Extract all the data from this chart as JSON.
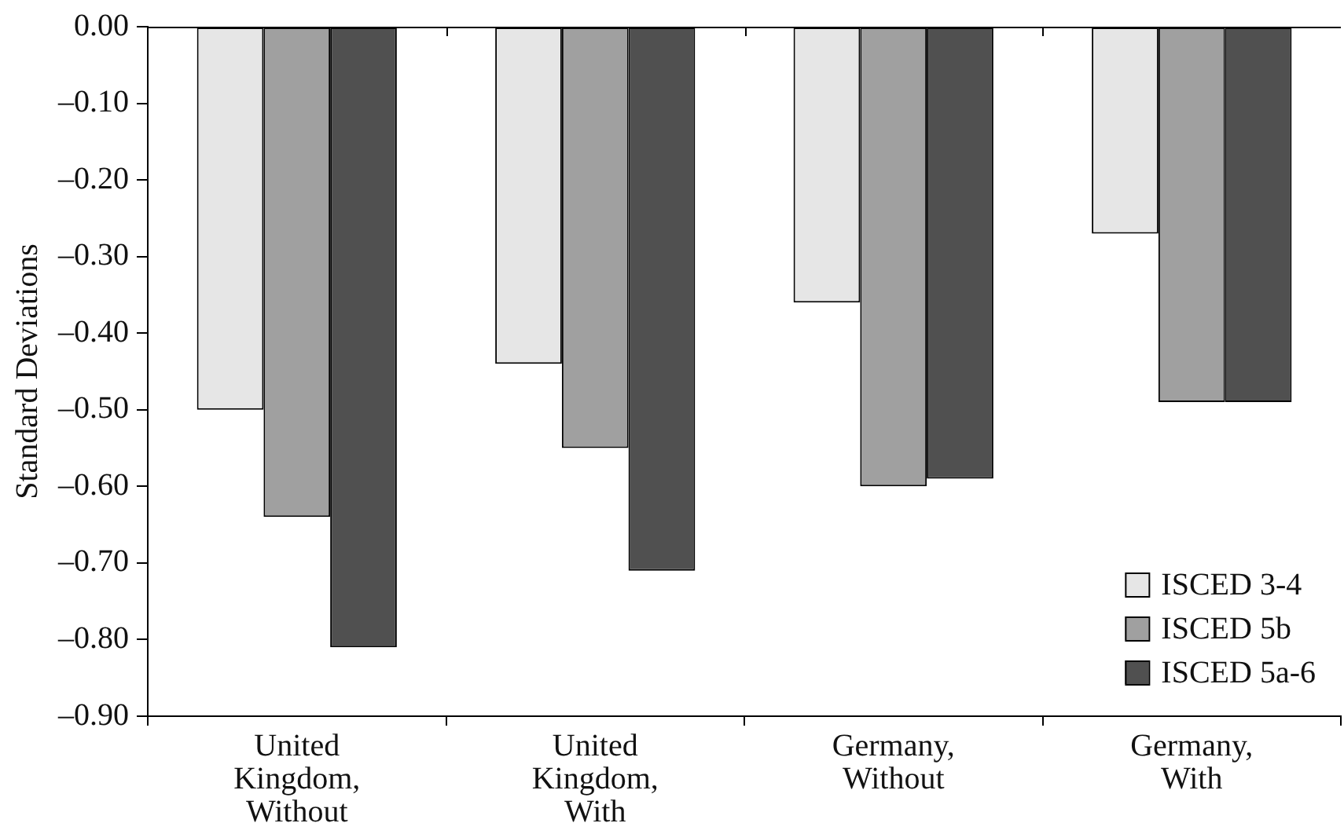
{
  "chart_data": {
    "type": "bar",
    "ylabel": "Standard Deviations",
    "categories": [
      "United Kingdom, Without",
      "United Kingdom, With",
      "Germany, Without",
      "Germany, With"
    ],
    "series": [
      {
        "name": "ISCED 3-4",
        "color": "#e6e6e6",
        "values": [
          -0.5,
          -0.44,
          -0.36,
          -0.27
        ]
      },
      {
        "name": "ISCED 5b",
        "color": "#a0a0a0",
        "values": [
          -0.64,
          -0.55,
          -0.6,
          -0.49
        ]
      },
      {
        "name": "ISCED 5a-6",
        "color": "#505050",
        "values": [
          -0.81,
          -0.71,
          -0.59,
          -0.49
        ]
      }
    ],
    "ylim": [
      -0.9,
      0
    ],
    "yticks": [
      {
        "value": 0,
        "label": "0.00"
      },
      {
        "value": -0.1,
        "label": "–0.10"
      },
      {
        "value": -0.2,
        "label": "–0.20"
      },
      {
        "value": -0.3,
        "label": "–0.30"
      },
      {
        "value": -0.4,
        "label": "–0.40"
      },
      {
        "value": -0.5,
        "label": "–0.50"
      },
      {
        "value": -0.6,
        "label": "–0.60"
      },
      {
        "value": -0.7,
        "label": "–0.70"
      },
      {
        "value": -0.8,
        "label": "–0.80"
      },
      {
        "value": -0.9,
        "label": "–0.90"
      }
    ],
    "grid": false,
    "legend": "bottom right"
  }
}
